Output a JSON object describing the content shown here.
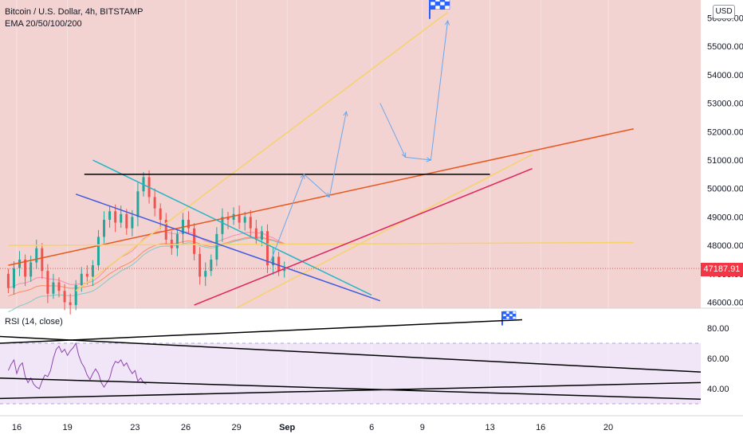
{
  "header": {
    "title": "Bitcoin / U.S. Dollar, 4h, BITSTAMP",
    "indicator": "EMA 20/50/100/200",
    "currency_label": "USD"
  },
  "rsi_panel": {
    "title": "RSI (14, close)"
  },
  "last_price": "47187.91",
  "colors": {
    "price_bg": "#f3d2d2",
    "rsi_band": "#f0e6f8",
    "candle_up": "#26a69a",
    "candle_down": "#ef5350",
    "trend_orange": "#e8561c",
    "trend_yellow": "#f5d36a",
    "trend_cyan": "#26b5c5",
    "trend_blue": "#3f5be0",
    "trend_magenta": "#e0245e",
    "projection_arrow": "#6aa8ea",
    "rsi_line": "#8e44ad",
    "flag": "#2962ff"
  },
  "icons": {
    "target_flag": "checkered-flag-icon"
  },
  "chart_data": [
    {
      "type": "candlestick",
      "title": "Bitcoin / U.S. Dollar, 4h, BITSTAMP",
      "xlabel": "",
      "ylabel": "",
      "y_scale": "linear",
      "ylim": [
        45800,
        56700
      ],
      "y_ticks": [
        46000,
        47000,
        48000,
        49000,
        50000,
        51000,
        52000,
        53000,
        54000,
        55000,
        56000
      ],
      "y_tick_labels": [
        "46000.00",
        "47000.00",
        "48000.00",
        "49000.00",
        "50000.00",
        "51000.00",
        "52000.00",
        "53000.00",
        "54000.00",
        "55000.00",
        "56000.00"
      ],
      "x_axis": "date",
      "x_ticks": [
        "2021-08-16",
        "2021-08-19",
        "2021-08-23",
        "2021-08-26",
        "2021-08-29",
        "2021-09-01",
        "2021-09-06",
        "2021-09-09",
        "2021-09-13",
        "2021-09-16",
        "2021-09-20"
      ],
      "x_tick_labels": [
        "16",
        "19",
        "23",
        "26",
        "29",
        "Sep",
        "6",
        "9",
        "13",
        "16",
        "20"
      ],
      "last_price": 47187.91,
      "candles_approx": [
        {
          "x": "2021-08-15T12:00",
          "o": 47000,
          "c": 46500
        },
        {
          "x": "2021-08-15T20:00",
          "o": 46500,
          "c": 47200
        },
        {
          "x": "2021-08-16T04:00",
          "o": 47200,
          "c": 47500
        },
        {
          "x": "2021-08-16T12:00",
          "o": 47500,
          "c": 46900
        },
        {
          "x": "2021-08-16T20:00",
          "o": 46900,
          "c": 47400
        },
        {
          "x": "2021-08-17T04:00",
          "o": 47400,
          "c": 47900
        },
        {
          "x": "2021-08-17T12:00",
          "o": 47900,
          "c": 47100
        },
        {
          "x": "2021-08-17T20:00",
          "o": 47100,
          "c": 46300
        },
        {
          "x": "2021-08-18T04:00",
          "o": 46300,
          "c": 46700
        },
        {
          "x": "2021-08-18T12:00",
          "o": 46700,
          "c": 46400
        },
        {
          "x": "2021-08-18T20:00",
          "o": 46400,
          "c": 46000
        },
        {
          "x": "2021-08-19T04:00",
          "o": 46000,
          "c": 45900
        },
        {
          "x": "2021-08-19T12:00",
          "o": 45900,
          "c": 46600
        },
        {
          "x": "2021-08-19T20:00",
          "o": 46600,
          "c": 47000
        },
        {
          "x": "2021-08-20T04:00",
          "o": 47000,
          "c": 46900
        },
        {
          "x": "2021-08-20T12:00",
          "o": 46900,
          "c": 47300
        },
        {
          "x": "2021-08-20T20:00",
          "o": 47300,
          "c": 48300
        },
        {
          "x": "2021-08-21T04:00",
          "o": 48300,
          "c": 48900
        },
        {
          "x": "2021-08-21T12:00",
          "o": 48900,
          "c": 49200
        },
        {
          "x": "2021-08-21T20:00",
          "o": 49200,
          "c": 48800
        },
        {
          "x": "2021-08-22T04:00",
          "o": 48800,
          "c": 49100
        },
        {
          "x": "2021-08-22T12:00",
          "o": 49100,
          "c": 48600
        },
        {
          "x": "2021-08-22T20:00",
          "o": 48600,
          "c": 49000
        },
        {
          "x": "2021-08-23T04:00",
          "o": 49000,
          "c": 49900
        },
        {
          "x": "2021-08-23T12:00",
          "o": 49900,
          "c": 50400
        },
        {
          "x": "2021-08-23T20:00",
          "o": 50400,
          "c": 49700
        },
        {
          "x": "2021-08-24T04:00",
          "o": 49700,
          "c": 49300
        },
        {
          "x": "2021-08-24T12:00",
          "o": 49300,
          "c": 48900
        },
        {
          "x": "2021-08-24T20:00",
          "o": 48900,
          "c": 48200
        },
        {
          "x": "2021-08-25T04:00",
          "o": 48200,
          "c": 47900
        },
        {
          "x": "2021-08-25T12:00",
          "o": 47900,
          "c": 48400
        },
        {
          "x": "2021-08-25T20:00",
          "o": 48400,
          "c": 48900
        },
        {
          "x": "2021-08-26T04:00",
          "o": 48900,
          "c": 48600
        },
        {
          "x": "2021-08-26T12:00",
          "o": 48600,
          "c": 47700
        },
        {
          "x": "2021-08-26T20:00",
          "o": 47700,
          "c": 46900
        },
        {
          "x": "2021-08-27T04:00",
          "o": 46900,
          "c": 47100
        },
        {
          "x": "2021-08-27T12:00",
          "o": 47100,
          "c": 47500
        },
        {
          "x": "2021-08-27T20:00",
          "o": 47500,
          "c": 48400
        },
        {
          "x": "2021-08-28T04:00",
          "o": 48400,
          "c": 49000
        },
        {
          "x": "2021-08-28T12:00",
          "o": 49000,
          "c": 48900
        },
        {
          "x": "2021-08-28T20:00",
          "o": 48900,
          "c": 49100
        },
        {
          "x": "2021-08-29T04:00",
          "o": 49100,
          "c": 48800
        },
        {
          "x": "2021-08-29T12:00",
          "o": 48800,
          "c": 49000
        },
        {
          "x": "2021-08-29T20:00",
          "o": 49000,
          "c": 48600
        },
        {
          "x": "2021-08-30T04:00",
          "o": 48600,
          "c": 48200
        },
        {
          "x": "2021-08-30T12:00",
          "o": 48200,
          "c": 48500
        },
        {
          "x": "2021-08-30T20:00",
          "o": 48500,
          "c": 47300
        },
        {
          "x": "2021-08-31T04:00",
          "o": 47300,
          "c": 47600
        },
        {
          "x": "2021-08-31T12:00",
          "o": 47600,
          "c": 47100
        },
        {
          "x": "2021-08-31T20:00",
          "o": 47100,
          "c": 47188
        }
      ],
      "annotations": [
        {
          "kind": "horizontal-segment",
          "color": "black",
          "from": [
            "2021-08-20",
            "50500"
          ],
          "to": [
            "2021-09-13",
            "50500"
          ]
        },
        {
          "kind": "target-flag",
          "at": [
            "2021-09-10",
            "56200"
          ]
        }
      ]
    },
    {
      "type": "line",
      "title": "RSI (14, close)",
      "ylim": [
        30,
        88
      ],
      "y_ticks": [
        40,
        60,
        80
      ],
      "y_tick_labels": [
        "40.00",
        "60.00",
        "80.00"
      ],
      "band": [
        30,
        70
      ],
      "series": [
        {
          "name": "",
          "x_start": "2021-08-15T12:00",
          "step_hours": 4,
          "values": [
            52,
            56,
            59,
            50,
            55,
            57,
            48,
            44,
            47,
            43,
            41,
            40,
            45,
            49,
            48,
            52,
            60,
            66,
            68,
            64,
            66,
            62,
            65,
            67,
            70,
            62,
            57,
            54,
            49,
            46,
            50,
            53,
            50,
            44,
            41,
            44,
            47,
            54,
            58,
            57,
            59,
            55,
            57,
            53,
            50,
            52,
            45,
            47,
            44,
            43
          ]
        }
      ]
    }
  ]
}
